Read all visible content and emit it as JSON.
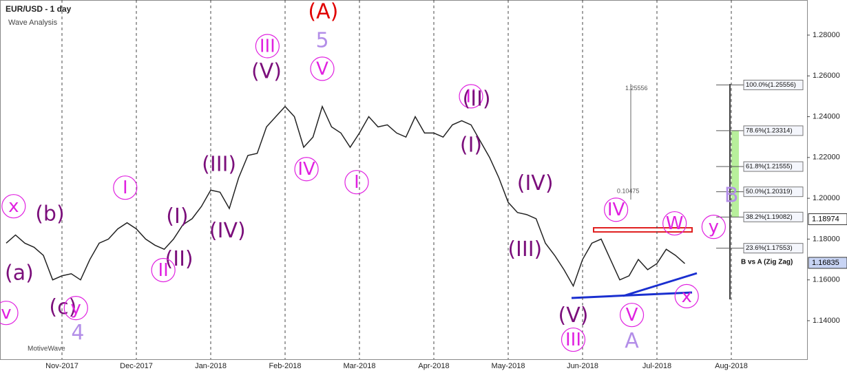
{
  "chart_data": {
    "type": "line",
    "title": "EUR/USD - 1 day",
    "subtitle": "Wave Analysis",
    "brand": "MotiveWave",
    "categories": [
      null,
      null,
      null,
      null,
      null,
      null,
      "Nov-2017",
      null,
      null,
      null,
      null,
      null,
      null,
      null,
      "Dec-2017",
      null,
      null,
      null,
      null,
      null,
      null,
      null,
      "Jan-2018",
      null,
      null,
      null,
      null,
      null,
      null,
      null,
      "Feb-2018",
      null,
      null,
      null,
      null,
      null,
      null,
      null,
      "Mar-2018",
      null,
      null,
      null,
      null,
      null,
      null,
      null,
      "Apr-2018",
      null,
      null,
      null,
      null,
      null,
      null,
      null,
      "May-2018",
      null,
      null,
      null,
      null,
      null,
      null,
      null,
      "Jun-2018",
      null,
      null,
      null,
      null,
      null,
      null,
      null,
      "Jul-2018",
      null,
      null,
      null,
      null,
      null,
      null,
      null,
      "Aug-2018",
      null
    ],
    "series": [
      {
        "name": "EUR/USD",
        "color": "#222222",
        "values": [
          1.178,
          1.182,
          1.178,
          1.176,
          1.172,
          1.16,
          1.162,
          1.163,
          1.16,
          1.17,
          1.178,
          1.18,
          1.185,
          1.188,
          1.185,
          1.18,
          1.177,
          1.175,
          1.18,
          1.187,
          1.19,
          1.196,
          1.204,
          1.203,
          1.195,
          1.21,
          1.221,
          1.222,
          1.235,
          1.24,
          1.245,
          1.24,
          1.225,
          1.23,
          1.245,
          1.235,
          1.232,
          1.225,
          1.232,
          1.24,
          1.235,
          1.236,
          1.232,
          1.23,
          1.24,
          1.232,
          1.232,
          1.23,
          1.236,
          1.238,
          1.236,
          1.228,
          1.22,
          1.21,
          1.198,
          1.193,
          1.192,
          1.19,
          1.178,
          1.172,
          1.165,
          1.157,
          1.17,
          1.178,
          1.18,
          1.17,
          1.16,
          1.162,
          1.17,
          1.165,
          1.168,
          1.175,
          1.172,
          1.168,
          null,
          null,
          null,
          null,
          null,
          null
        ]
      }
    ],
    "ylim": [
      1.1211,
      1.2972
    ],
    "yticks": [
      {
        "value": 1.28,
        "label": "1.28000"
      },
      {
        "value": 1.26,
        "label": "1.26000"
      },
      {
        "value": 1.24,
        "label": "1.24000"
      },
      {
        "value": 1.22,
        "label": "1.22000"
      },
      {
        "value": 1.2,
        "label": "1.20000"
      },
      {
        "value": 1.18,
        "label": "1.18000"
      },
      {
        "value": 1.16,
        "label": "1.16000"
      },
      {
        "value": 1.14,
        "label": "1.14000"
      }
    ],
    "price_labels": [
      {
        "value": 1.18974,
        "label": "1.18974",
        "color": "#ffffff"
      },
      {
        "value": 1.16835,
        "label": "1.16835",
        "color": "#c8d4f4"
      }
    ],
    "fib_levels": [
      {
        "value": 1.25556,
        "label": "100.0%(1.25556)"
      },
      {
        "value": 1.23314,
        "label": "78.6%(1.23314)"
      },
      {
        "value": 1.21555,
        "label": "61.8%(1.21555)"
      },
      {
        "value": 1.20319,
        "label": "50.0%(1.20319)"
      },
      {
        "value": 1.19082,
        "label": "38.2%(1.19082)"
      },
      {
        "value": 1.17553,
        "label": "23.6%(1.17553)"
      }
    ],
    "fib_title": "B vs A (Zig Zag)",
    "annotations": [
      {
        "text": "(A)",
        "x": 34.1,
        "y": 1.2911,
        "style": "plain",
        "color": "#e00000"
      },
      {
        "text": "5",
        "x": 34,
        "y": 1.277,
        "style": "plain",
        "color": "#b38ee8"
      },
      {
        "text": "III",
        "x": 28.1,
        "y": 1.2746,
        "style": "circled",
        "color": "#e020e0"
      },
      {
        "text": "(V)",
        "x": 28,
        "y": 1.2618,
        "style": "plain",
        "color": "#7b0f7b"
      },
      {
        "text": "V",
        "x": 34,
        "y": 1.2635,
        "style": "circled",
        "color": "#e020e0"
      },
      {
        "text": "II",
        "x": 50,
        "y": 1.25,
        "style": "circled",
        "color": "#e020e0"
      },
      {
        "text": "(II)",
        "x": 50.6,
        "y": 1.2483,
        "style": "plain",
        "color": "#7b0f7b"
      },
      {
        "text": "(I)",
        "x": 50,
        "y": 1.2257,
        "style": "plain",
        "color": "#7b0f7b"
      },
      {
        "text": "IV",
        "x": 32.3,
        "y": 1.2143,
        "style": "circled",
        "color": "#e020e0"
      },
      {
        "text": "(III)",
        "x": 22.9,
        "y": 1.2163,
        "style": "plain",
        "color": "#7b0f7b"
      },
      {
        "text": "(IV)",
        "x": 23.8,
        "y": 1.1836,
        "style": "plain",
        "color": "#7b0f7b"
      },
      {
        "text": "I",
        "x": 37.7,
        "y": 1.2079,
        "style": "circled",
        "color": "#e020e0"
      },
      {
        "text": "I",
        "x": 12.8,
        "y": 1.2052,
        "style": "circled",
        "color": "#e020e0"
      },
      {
        "text": "(I)",
        "x": 18.4,
        "y": 1.1907,
        "style": "plain",
        "color": "#7b0f7b"
      },
      {
        "text": "(II)",
        "x": 18.6,
        "y": 1.1698,
        "style": "plain",
        "color": "#7b0f7b"
      },
      {
        "text": "II",
        "x": 16.9,
        "y": 1.1648,
        "style": "circled",
        "color": "#e020e0"
      },
      {
        "text": "x",
        "x": 0.8,
        "y": 1.1961,
        "style": "circled",
        "color": "#e020e0"
      },
      {
        "text": "(b)",
        "x": 4.7,
        "y": 1.192,
        "style": "plain",
        "color": "#7b0f7b"
      },
      {
        "text": "(a)",
        "x": 1.4,
        "y": 1.163,
        "style": "plain",
        "color": "#7b0f7b"
      },
      {
        "text": "(c)",
        "x": 6.1,
        "y": 1.1462,
        "style": "plain",
        "color": "#7b0f7b"
      },
      {
        "text": "y",
        "x": 7.5,
        "y": 1.1462,
        "style": "circled",
        "color": "#e020e0"
      },
      {
        "text": "v",
        "x": 0,
        "y": 1.1438,
        "style": "circled",
        "color": "#e020e0"
      },
      {
        "text": "4",
        "x": 7.7,
        "y": 1.1337,
        "style": "plain",
        "color": "#b38ee8"
      },
      {
        "text": "(IV)",
        "x": 56.9,
        "y": 1.2069,
        "style": "plain",
        "color": "#7b0f7b"
      },
      {
        "text": "(III)",
        "x": 55.8,
        "y": 1.1745,
        "style": "plain",
        "color": "#7b0f7b"
      },
      {
        "text": "IV",
        "x": 65.6,
        "y": 1.1944,
        "style": "circled",
        "color": "#e020e0"
      },
      {
        "text": "(V)",
        "x": 61,
        "y": 1.1422,
        "style": "plain",
        "color": "#7b0f7b"
      },
      {
        "text": "III",
        "x": 61,
        "y": 1.1307,
        "style": "circled",
        "color": "#e020e0"
      },
      {
        "text": "V",
        "x": 67.3,
        "y": 1.1428,
        "style": "circled",
        "color": "#e020e0"
      },
      {
        "text": "A",
        "x": 67.3,
        "y": 1.1297,
        "style": "plain",
        "color": "#b38ee8"
      },
      {
        "text": "W",
        "x": 71.9,
        "y": 1.1877,
        "style": "circled",
        "color": "#e020e0"
      },
      {
        "text": "y",
        "x": 76.1,
        "y": 1.186,
        "style": "circled",
        "color": "#e020e0"
      },
      {
        "text": "x",
        "x": 73.2,
        "y": 1.152,
        "style": "circled",
        "color": "#e020e0"
      },
      {
        "text": "B",
        "x": 78,
        "y": 1.2011,
        "style": "plain",
        "color": "#b38ee8"
      },
      {
        "text": "1.25556",
        "x": 67.8,
        "y": 1.2538,
        "style": "note",
        "color": "#555555"
      },
      {
        "text": "0.10475",
        "x": 66.9,
        "y": 1.2033,
        "style": "note",
        "color": "#555555"
      }
    ]
  }
}
